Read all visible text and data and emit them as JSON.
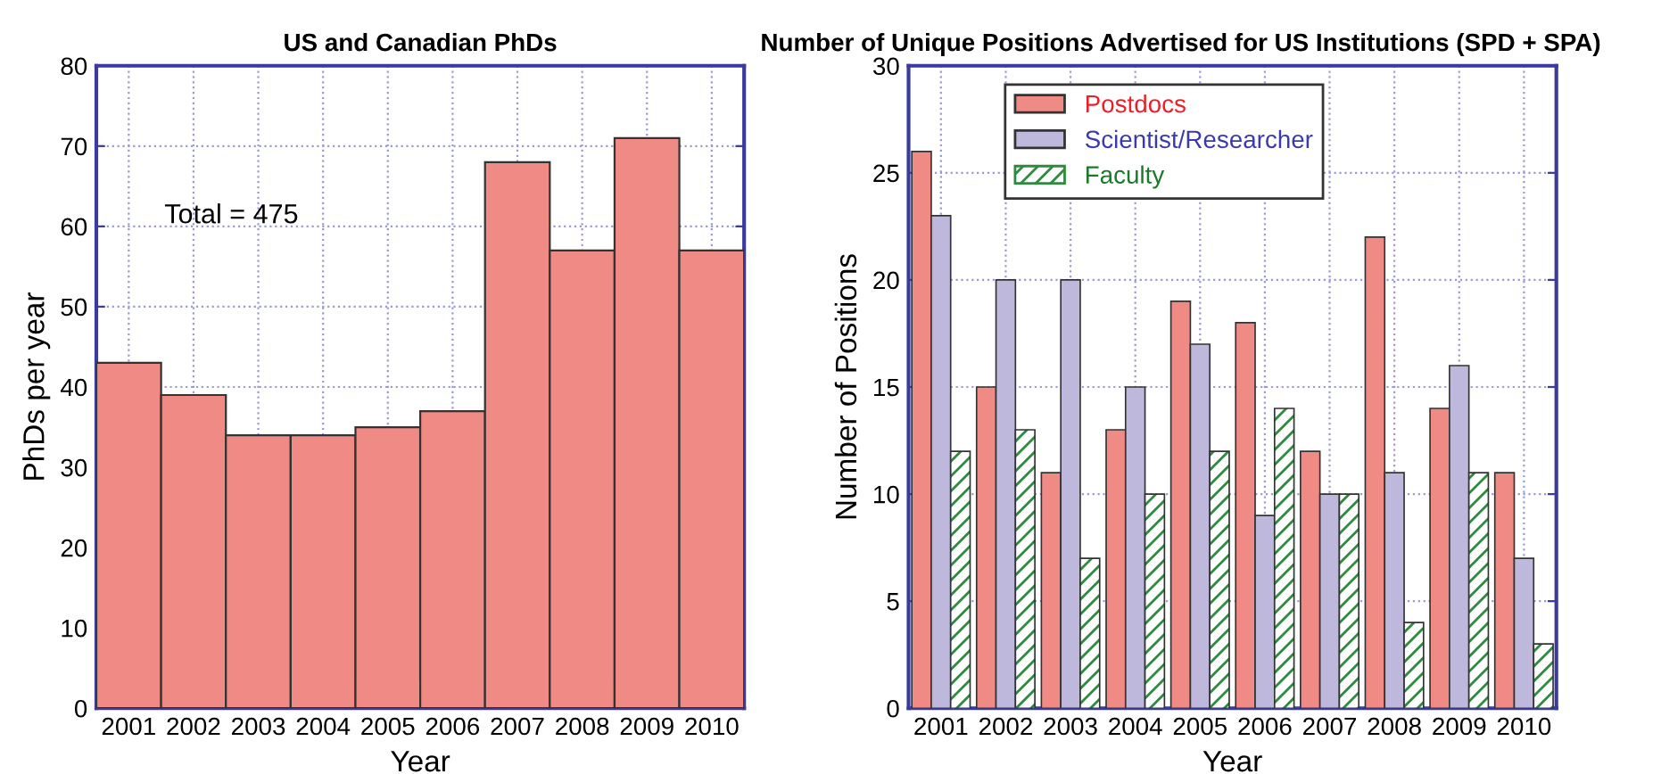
{
  "chart_data": [
    {
      "type": "bar",
      "title": "US and Canadian PhDs",
      "xlabel": "Year",
      "ylabel": "PhDs per year",
      "categories": [
        "2001",
        "2002",
        "2003",
        "2004",
        "2005",
        "2006",
        "2007",
        "2008",
        "2009",
        "2010"
      ],
      "values": [
        43,
        39,
        34,
        34,
        35,
        37,
        68,
        57,
        71,
        57
      ],
      "color": "#ef8b84",
      "ylim": [
        0,
        80
      ],
      "yticks": [
        0,
        10,
        20,
        30,
        40,
        50,
        60,
        70,
        80
      ],
      "grid": true,
      "annotations": [
        "Total = 475"
      ]
    },
    {
      "type": "bar",
      "title": "Number of Unique Positions Advertised for US Institutions (SPD + SPA)",
      "xlabel": "Year",
      "ylabel": "Number of Positions",
      "categories": [
        "2001",
        "2002",
        "2003",
        "2004",
        "2005",
        "2006",
        "2007",
        "2008",
        "2009",
        "2010"
      ],
      "series": [
        {
          "name": "Postdocs",
          "color": "#ef8b84",
          "values": [
            26,
            15,
            11,
            13,
            19,
            18,
            12,
            22,
            14,
            11
          ]
        },
        {
          "name": "Scientist/Researcher",
          "color": "#bdb8dc",
          "values": [
            23,
            20,
            20,
            15,
            17,
            9,
            10,
            11,
            16,
            7
          ]
        },
        {
          "name": "Faculty",
          "color": "#2e8b3e",
          "values": [
            12,
            13,
            7,
            10,
            12,
            14,
            10,
            4,
            11,
            3
          ]
        }
      ],
      "ylim": [
        0,
        30
      ],
      "yticks": [
        0,
        5,
        10,
        15,
        20,
        25,
        30
      ],
      "grid": true,
      "legend": "top left"
    }
  ]
}
